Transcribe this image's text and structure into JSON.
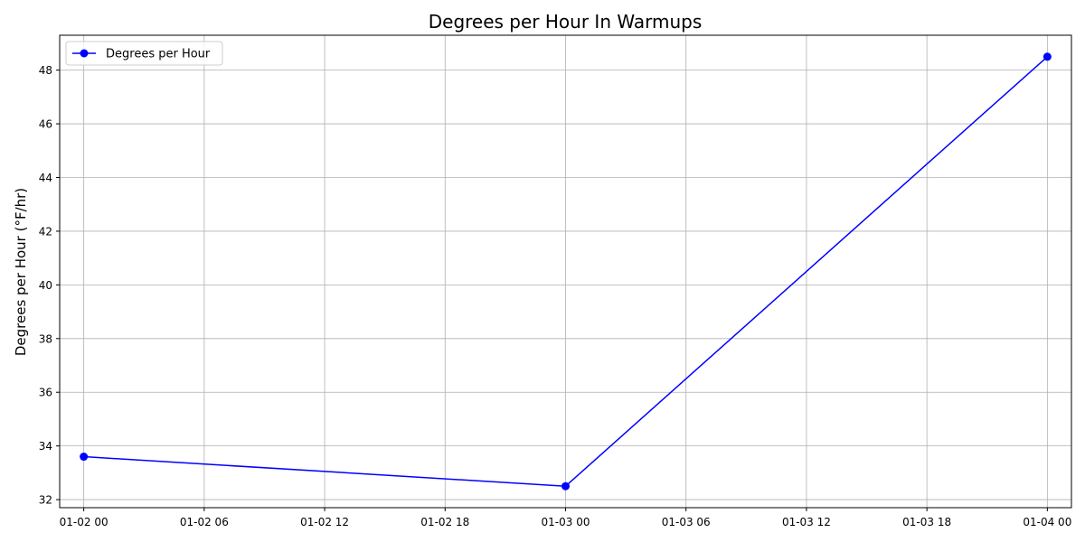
{
  "chart_data": {
    "type": "line",
    "title": "Degrees per Hour In Warmups",
    "xlabel": "",
    "ylabel": "Degrees per Hour (°F/hr)",
    "x_type": "datetime",
    "xlim": [
      "2024-01-01T22:48",
      "2024-01-04T01:12"
    ],
    "ylim": [
      31.7,
      49.3
    ],
    "x_ticks": [
      {
        "value": "2024-01-02T00:00",
        "label": "01-02 00"
      },
      {
        "value": "2024-01-02T06:00",
        "label": "01-02 06"
      },
      {
        "value": "2024-01-02T12:00",
        "label": "01-02 12"
      },
      {
        "value": "2024-01-02T18:00",
        "label": "01-02 18"
      },
      {
        "value": "2024-01-03T00:00",
        "label": "01-03 00"
      },
      {
        "value": "2024-01-03T06:00",
        "label": "01-03 06"
      },
      {
        "value": "2024-01-03T12:00",
        "label": "01-03 12"
      },
      {
        "value": "2024-01-03T18:00",
        "label": "01-03 18"
      },
      {
        "value": "2024-01-04T00:00",
        "label": "01-04 00"
      }
    ],
    "y_ticks": [
      32,
      34,
      36,
      38,
      40,
      42,
      44,
      46,
      48
    ],
    "grid": true,
    "legend_position": "top-left",
    "series": [
      {
        "name": "Degrees per Hour",
        "color": "#0000ff",
        "marker": "circle",
        "x": [
          "2024-01-02T00:00",
          "2024-01-03T00:00",
          "2024-01-04T00:00"
        ],
        "y": [
          33.6,
          32.5,
          48.5
        ]
      }
    ]
  }
}
